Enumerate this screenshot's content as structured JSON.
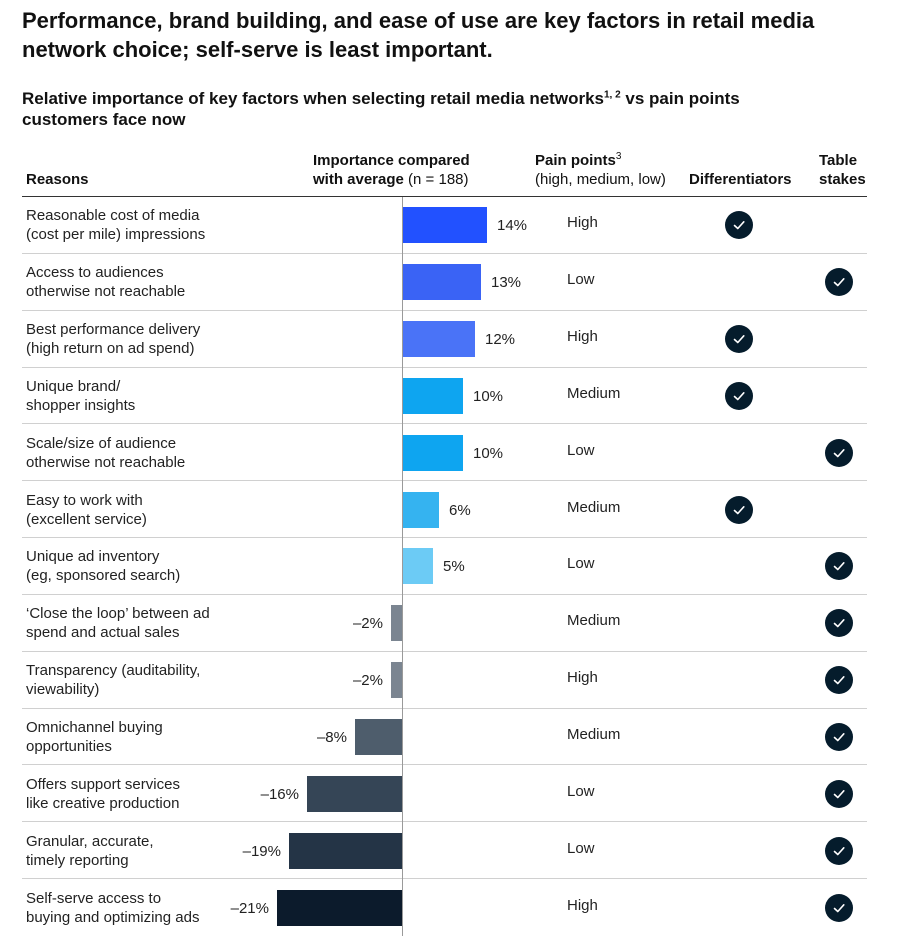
{
  "headline": "Performance, brand building, and ease of use are key factors in retail media network choice; self-serve is least important.",
  "subtitle": {
    "text": "Relative importance of key factors when selecting retail media networks",
    "sup": "1, 2",
    "text2": " vs pain points customers face now"
  },
  "columns": {
    "reasons": "Reasons",
    "importance_line1": "Importance compared",
    "importance_line2": "with average",
    "importance_n": "(n = 188)",
    "pain_label": "Pain points",
    "pain_sup": "3",
    "pain_sub": "(high, medium, low)",
    "differentiators": "Differentiators",
    "table_stakes_line1": "Table",
    "table_stakes_line2": "stakes"
  },
  "chart_data": {
    "type": "bar",
    "orientation": "horizontal",
    "unit": "%",
    "xlim": [
      -21,
      14
    ],
    "rows": [
      {
        "reason": [
          "Reasonable cost of media",
          "(cost per mile) impressions"
        ],
        "value": 14,
        "label": "14%",
        "pain": "High",
        "category": "differentiator",
        "color": "#2251ff"
      },
      {
        "reason": [
          "Access to audiences",
          "otherwise not reachable"
        ],
        "value": 13,
        "label": "13%",
        "pain": "Low",
        "category": "table_stakes",
        "color": "#3a63f5"
      },
      {
        "reason": [
          "Best performance delivery",
          "(high return on ad spend)"
        ],
        "value": 12,
        "label": "12%",
        "pain": "High",
        "category": "differentiator",
        "color": "#4a73f7"
      },
      {
        "reason": [
          "Unique brand/",
          "shopper insights"
        ],
        "value": 10,
        "label": "10%",
        "pain": "Medium",
        "category": "differentiator",
        "color": "#0ea5f0"
      },
      {
        "reason": [
          "Scale/size of audience",
          "otherwise not reachable"
        ],
        "value": 10,
        "label": "10%",
        "pain": "Low",
        "category": "table_stakes",
        "color": "#0ea5f0"
      },
      {
        "reason": [
          "Easy to work with",
          "(excellent service)"
        ],
        "value": 6,
        "label": "6%",
        "pain": "Medium",
        "category": "differentiator",
        "color": "#35b3f0"
      },
      {
        "reason": [
          "Unique ad inventory",
          "(eg, sponsored search)"
        ],
        "value": 5,
        "label": "5%",
        "pain": "Low",
        "category": "table_stakes",
        "color": "#6ccbf5"
      },
      {
        "reason": [
          "‘Close the loop’ between ad",
          "spend and actual sales"
        ],
        "value": -2,
        "label": "–2%",
        "pain": "Medium",
        "category": "table_stakes",
        "color": "#7b8591"
      },
      {
        "reason": [
          "Transparency (auditability,",
          "viewability)"
        ],
        "value": -2,
        "label": "–2%",
        "pain": "High",
        "category": "table_stakes",
        "color": "#7b8591"
      },
      {
        "reason": [
          "Omnichannel buying",
          "opportunities"
        ],
        "value": -8,
        "label": "–8%",
        "pain": "Medium",
        "category": "table_stakes",
        "color": "#4e5d6c"
      },
      {
        "reason": [
          "Offers support services",
          "like creative production"
        ],
        "value": -16,
        "label": "–16%",
        "pain": "Low",
        "category": "table_stakes",
        "color": "#354556"
      },
      {
        "reason": [
          "Granular, accurate,",
          "timely reporting"
        ],
        "value": -19,
        "label": "–19%",
        "pain": "Low",
        "category": "table_stakes",
        "color": "#243446"
      },
      {
        "reason": [
          "Self-serve access to",
          "buying and optimizing ads"
        ],
        "value": -21,
        "label": "–21%",
        "pain": "High",
        "category": "table_stakes",
        "color": "#0c1b2c"
      }
    ]
  }
}
